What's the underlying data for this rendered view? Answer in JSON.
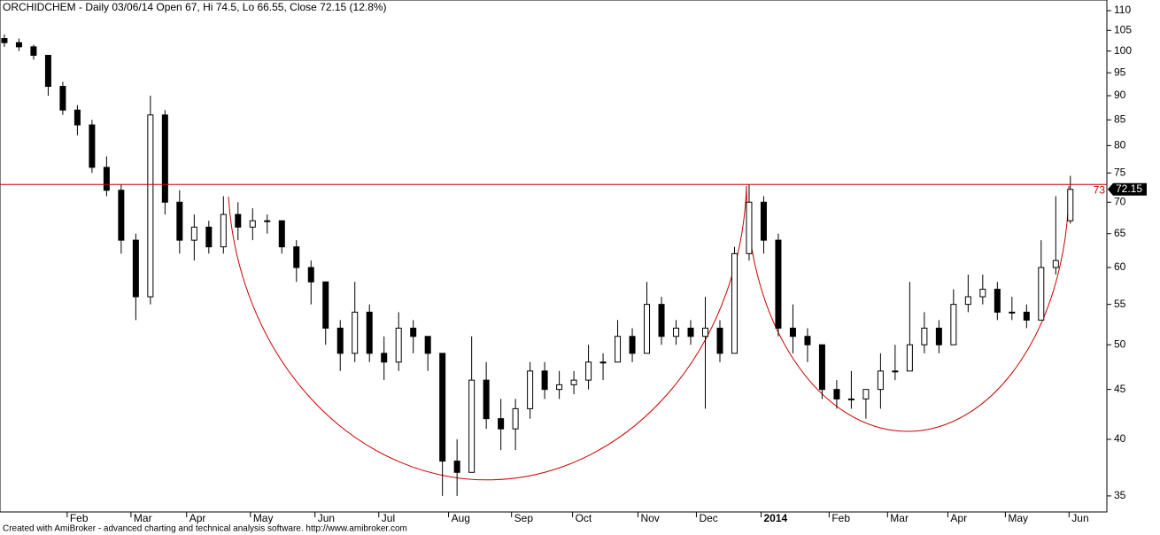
{
  "chart_data": {
    "type": "candlestick",
    "title": "ORCHIDCHEM - Daily 03/06/14 Open 67, Hi 74.5, Lo 66.55, Close 72.15 (12.8%)",
    "footer": "Created with AmiBroker - advanced charting and technical analysis software. http://www.amibroker.com",
    "log_scale": true,
    "ylim": [
      33.7,
      112.8
    ],
    "yticks": [
      35,
      40,
      45,
      50,
      55,
      60,
      65,
      70,
      75,
      80,
      85,
      90,
      95,
      100,
      105,
      110
    ],
    "xlim": [
      -0.3,
      75.5
    ],
    "xticks": [
      {
        "value": 4.3,
        "label": "Feb"
      },
      {
        "value": 8.67,
        "label": "Mar"
      },
      {
        "value": 12.48,
        "label": "Apr"
      },
      {
        "value": 16.85,
        "label": "May"
      },
      {
        "value": 21.27,
        "label": "Jun"
      },
      {
        "value": 25.64,
        "label": "Jul"
      },
      {
        "value": 30.42,
        "label": "Aug"
      },
      {
        "value": 34.73,
        "label": "Sep"
      },
      {
        "value": 38.91,
        "label": "Oct"
      },
      {
        "value": 43.39,
        "label": "Nov"
      },
      {
        "value": 47.39,
        "label": "Dec"
      },
      {
        "value": 51.82,
        "label": "2014"
      },
      {
        "value": 56.48,
        "label": "Feb"
      },
      {
        "value": 60.48,
        "label": "Mar"
      },
      {
        "value": 64.61,
        "label": "Apr"
      },
      {
        "value": 68.55,
        "label": "May"
      },
      {
        "value": 72.91,
        "label": "Jun"
      }
    ],
    "open": [
      103,
      102,
      101,
      99,
      92,
      87,
      84,
      76,
      72,
      64,
      56,
      86,
      70,
      64,
      66,
      63,
      68,
      66,
      67,
      67,
      63,
      60,
      58,
      52,
      49,
      54,
      49,
      48,
      52,
      51,
      49,
      38,
      37,
      46,
      42,
      41,
      43,
      47,
      45,
      45.5,
      46,
      48,
      48,
      51,
      49,
      55,
      51,
      52,
      51,
      52,
      49,
      62,
      70,
      64,
      52,
      51,
      50,
      45,
      44,
      44,
      45,
      47,
      47,
      50,
      52,
      50,
      55,
      56,
      57,
      54,
      54,
      53,
      60,
      67
    ],
    "high": [
      104,
      103,
      101.5,
      99,
      93,
      88,
      85,
      78,
      73,
      65,
      90,
      87,
      72,
      68,
      67,
      71,
      70,
      69,
      68,
      67,
      64,
      61,
      58,
      53,
      58,
      55,
      51,
      54,
      53,
      51,
      49,
      40,
      51,
      48,
      44,
      44,
      48,
      48,
      47,
      47,
      50,
      49,
      53,
      52,
      58,
      56,
      53,
      53,
      56,
      53,
      63,
      73,
      71,
      65,
      55,
      52,
      50,
      46,
      47,
      45,
      49,
      50,
      58,
      54,
      53,
      57,
      59,
      59,
      58,
      56,
      55,
      64,
      71,
      74.5
    ],
    "low": [
      101,
      100,
      98,
      90,
      86,
      82,
      75,
      71,
      62,
      53,
      55,
      68,
      62,
      61,
      62,
      62,
      64,
      64,
      65,
      62,
      58,
      55,
      50,
      47,
      48,
      48,
      46,
      47,
      49,
      47,
      35,
      35,
      37,
      41,
      39,
      39,
      42,
      44,
      44,
      44.5,
      45,
      46,
      48,
      48,
      49,
      50,
      50,
      50,
      43,
      48,
      49,
      61,
      62,
      51,
      49,
      48,
      44,
      43,
      43,
      42,
      43,
      46,
      47,
      49,
      49,
      50,
      54,
      55,
      53,
      53,
      52,
      53,
      59,
      66.55
    ],
    "close": [
      102,
      101,
      99,
      92,
      87,
      84,
      76,
      72,
      64,
      56,
      86,
      70,
      64,
      66,
      63,
      68,
      66,
      67,
      67,
      63,
      60,
      58,
      52,
      49,
      54,
      49,
      48,
      52,
      51,
      49,
      38,
      37,
      46,
      42,
      41,
      43,
      47,
      45,
      45.5,
      46,
      48,
      48,
      51,
      49,
      55,
      51,
      52,
      51,
      52,
      49,
      62,
      70,
      64,
      52,
      51,
      50,
      45,
      44,
      44,
      45,
      47,
      47,
      50,
      52,
      50,
      55,
      56,
      57,
      54,
      54,
      53,
      60,
      61,
      72.15
    ],
    "hline": {
      "value": 73,
      "label": "73",
      "color": "#cc0000"
    },
    "last_tag": {
      "value": 72.15,
      "label": "72.15"
    }
  }
}
